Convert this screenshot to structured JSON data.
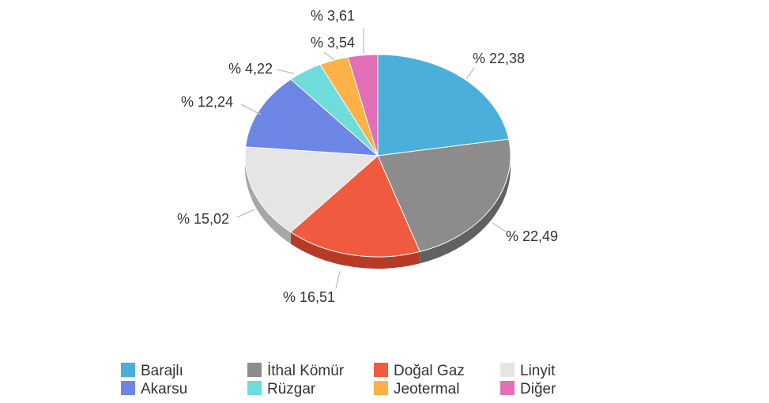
{
  "chart_data": {
    "type": "pie",
    "title": "",
    "slices": [
      {
        "name": "Barajlı",
        "value": 22.38,
        "label": "% 22,38",
        "color": "#4bafdb",
        "side": "#3a8db3"
      },
      {
        "name": "İthal Kömür",
        "value": 22.49,
        "label": "% 22,49",
        "color": "#8c8c8c",
        "side": "#616161"
      },
      {
        "name": "Doğal Gaz",
        "value": 16.51,
        "label": "% 16,51",
        "color": "#f05b3f",
        "side": "#b63b27"
      },
      {
        "name": "Linyit",
        "value": 15.02,
        "label": "% 15,02",
        "color": "#e5e5e5",
        "side": "#a7a7a7"
      },
      {
        "name": "Akarsu",
        "value": 12.24,
        "label": "% 12,24",
        "color": "#6d86e6",
        "side": "#4d63b3"
      },
      {
        "name": "Rüzgar",
        "value": 4.22,
        "label": "% 4,22",
        "color": "#6ddcda",
        "side": "#4aaaa8"
      },
      {
        "name": "Jeotermal",
        "value": 3.54,
        "label": "% 3,54",
        "color": "#fdb147",
        "side": "#c9862d"
      },
      {
        "name": "Diğer",
        "value": 3.61,
        "label": "% 3,61",
        "color": "#e26fb8",
        "side": "#b0508c"
      }
    ],
    "legend": {
      "placement": "bottom",
      "items": [
        "Barajlı",
        "İthal Kömür",
        "Doğal Gaz",
        "Linyit",
        "Akarsu",
        "Rüzgar",
        "Jeotermal",
        "Diğer"
      ]
    }
  }
}
